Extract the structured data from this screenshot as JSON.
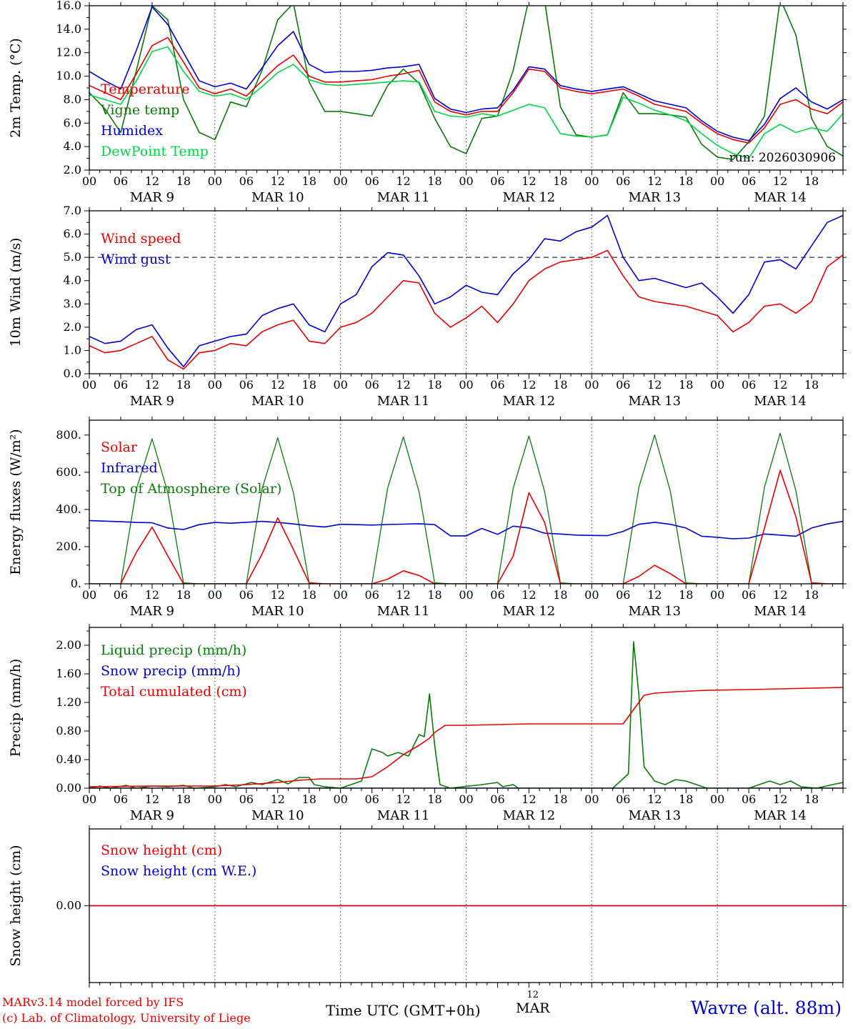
{
  "meta": {
    "credit_line1": "MARv3.14 model forced by IFS",
    "credit_line2": "(c) Lab. of Climatology, University of Liege",
    "xaxis_title": "Time UTC (GMT+0h)",
    "date_day": "12",
    "date_month": "MAR",
    "station_label": "Wavre (alt. 88m)",
    "colors": {
      "red": "#e60000",
      "blue": "#0000cd",
      "green": "#0b7a0b",
      "lightgreen": "#00d544",
      "black": "#000000"
    }
  },
  "xaxis": {
    "xlim": [
      0,
      144
    ],
    "tick_step_hours": 6,
    "tick_labels": [
      "00",
      "06",
      "12",
      "18"
    ],
    "day_labels": [
      "MAR  9",
      "MAR 10",
      "MAR 11",
      "MAR 12",
      "MAR 13",
      "MAR 14"
    ],
    "day_boundaries": [
      24,
      48,
      72,
      96,
      120
    ]
  },
  "chart_data": [
    {
      "type": "line",
      "name": "temp2m",
      "ylabel": "2m Temp. (°C)",
      "ylim": [
        2,
        16
      ],
      "yticks": [
        16,
        14,
        12,
        10,
        8,
        6,
        4,
        2
      ],
      "ytick_labels": [
        "16.0",
        "14.0",
        "12.0",
        "10.0",
        "8.0",
        "6.0",
        "4.0",
        "2.0"
      ],
      "yticks_minor": [
        3,
        5,
        7,
        9,
        11,
        13,
        15
      ],
      "annotation": {
        "text": "run: 2026030906",
        "color": "black"
      },
      "legend": [
        {
          "label": "Temperature",
          "color": "red"
        },
        {
          "label": "Vigne temp",
          "color": "green"
        },
        {
          "label": "Humidex",
          "color": "blue"
        },
        {
          "label": "DewPoint Temp",
          "color": "lightgreen"
        }
      ],
      "series": [
        {
          "name": "vigne-temp",
          "color": "green",
          "step": 3,
          "values": [
            8.6,
            7.2,
            5.2,
            10.5,
            16.0,
            14.8,
            8.0,
            5.2,
            4.6,
            7.8,
            7.4,
            10.5,
            14.8,
            16.2,
            9.5,
            7.0,
            7.0,
            6.8,
            6.6,
            9.2,
            10.6,
            9.4,
            6.4,
            4.0,
            3.4,
            6.4,
            6.6,
            10.5,
            16.6,
            16.4,
            7.4,
            5.0,
            4.8,
            5.0,
            8.6,
            6.8,
            6.8,
            6.7,
            6.5,
            4.2,
            3.1,
            2.9,
            4.4,
            6.6,
            16.6,
            13.5,
            6.4,
            4.0,
            3.2
          ]
        },
        {
          "name": "dewpoint-temp",
          "color": "lightgreen",
          "step": 3,
          "values": [
            8.4,
            8.0,
            7.6,
            9.6,
            12.1,
            12.5,
            10.4,
            8.7,
            8.3,
            8.5,
            8.0,
            9.1,
            10.3,
            11.0,
            9.7,
            9.3,
            9.2,
            9.3,
            9.4,
            9.5,
            9.6,
            9.5,
            7.0,
            6.6,
            6.5,
            6.8,
            6.6,
            7.1,
            7.6,
            7.3,
            5.1,
            4.9,
            4.8,
            5.0,
            8.2,
            7.7,
            7.1,
            6.7,
            6.2,
            5.1,
            4.1,
            3.4,
            3.0,
            5.1,
            5.9,
            5.2,
            5.6,
            5.3,
            6.8
          ]
        },
        {
          "name": "humidex",
          "color": "blue",
          "step": 3,
          "values": [
            10.4,
            9.6,
            8.9,
            12.2,
            15.9,
            14.4,
            12.0,
            9.6,
            9.1,
            9.4,
            8.9,
            10.7,
            12.6,
            13.8,
            11.0,
            10.3,
            10.4,
            10.4,
            10.5,
            10.7,
            10.8,
            11.0,
            8.1,
            7.2,
            6.9,
            7.2,
            7.3,
            8.8,
            10.8,
            10.6,
            9.2,
            8.9,
            8.7,
            8.9,
            9.1,
            8.5,
            7.9,
            7.6,
            7.3,
            6.2,
            5.3,
            4.8,
            4.5,
            5.9,
            8.1,
            9.0,
            7.8,
            7.2,
            8.0
          ]
        },
        {
          "name": "temperature",
          "color": "red",
          "step": 3,
          "values": [
            9.2,
            8.6,
            8.0,
            10.2,
            12.6,
            13.3,
            11.2,
            9.0,
            8.5,
            8.9,
            8.3,
            9.6,
            10.9,
            11.8,
            10.0,
            9.5,
            9.5,
            9.6,
            9.7,
            10.0,
            10.2,
            10.5,
            7.8,
            7.0,
            6.7,
            7.0,
            7.0,
            8.6,
            10.6,
            10.4,
            9.0,
            8.7,
            8.5,
            8.7,
            8.9,
            8.3,
            7.6,
            7.3,
            7.0,
            6.0,
            5.1,
            4.6,
            4.3,
            5.6,
            7.6,
            8.0,
            7.2,
            6.8,
            7.8
          ]
        }
      ]
    },
    {
      "type": "line",
      "name": "wind10m",
      "ylabel": "10m Wind (m/s)",
      "ylim": [
        0,
        7
      ],
      "yticks": [
        7,
        6,
        5,
        4,
        3,
        2,
        1,
        0
      ],
      "ytick_labels": [
        "7.0",
        "6.0",
        "5.0",
        "4.0",
        "3.0",
        "2.0",
        "1.0",
        "0.0"
      ],
      "yticks_minor": [
        0.5,
        1.5,
        2.5,
        3.5,
        4.5,
        5.5,
        6.5
      ],
      "hline": 5.0,
      "legend": [
        {
          "label": "Wind speed",
          "color": "red"
        },
        {
          "label": "Wind gust",
          "color": "blue"
        }
      ],
      "series": [
        {
          "name": "wind-gust",
          "color": "blue",
          "step": 3,
          "values": [
            1.6,
            1.3,
            1.4,
            1.9,
            2.1,
            1.1,
            0.3,
            1.2,
            1.4,
            1.6,
            1.7,
            2.5,
            2.8,
            3.0,
            2.1,
            1.8,
            3.0,
            3.4,
            4.6,
            5.2,
            5.1,
            4.2,
            3.0,
            3.3,
            3.8,
            3.5,
            3.4,
            4.3,
            4.9,
            5.8,
            5.7,
            6.1,
            6.3,
            6.8,
            5.0,
            4.0,
            4.1,
            3.9,
            3.7,
            3.9,
            3.3,
            2.6,
            3.4,
            4.8,
            4.9,
            4.5,
            5.5,
            6.5,
            6.8
          ]
        },
        {
          "name": "wind-speed",
          "color": "red",
          "step": 3,
          "values": [
            1.2,
            0.9,
            1.0,
            1.3,
            1.6,
            0.6,
            0.2,
            0.9,
            1.0,
            1.3,
            1.2,
            1.8,
            2.1,
            2.3,
            1.4,
            1.3,
            2.0,
            2.2,
            2.6,
            3.3,
            4.0,
            3.9,
            2.6,
            2.0,
            2.4,
            2.9,
            2.2,
            3.0,
            4.0,
            4.5,
            4.8,
            4.9,
            5.0,
            5.3,
            4.2,
            3.3,
            3.1,
            3.0,
            2.9,
            2.7,
            2.5,
            1.8,
            2.2,
            2.9,
            3.0,
            2.6,
            3.1,
            4.6,
            5.1
          ]
        }
      ]
    },
    {
      "type": "line",
      "name": "energy-fluxes",
      "ylabel": "Energy fluxes (W/m²)",
      "ylim": [
        0,
        880
      ],
      "yticks": [
        800,
        600,
        400,
        200,
        0
      ],
      "ytick_labels": [
        "800.",
        "600.",
        "400.",
        "200.",
        "0."
      ],
      "yticks_minor": [
        100,
        300,
        500,
        700
      ],
      "legend": [
        {
          "label": "Solar",
          "color": "red"
        },
        {
          "label": "Infrared",
          "color": "blue"
        },
        {
          "label": "Top of Atmosphere (Solar)",
          "color": "green"
        }
      ],
      "series": [
        {
          "name": "top-of-atmosphere-solar",
          "color": "green",
          "step": 3,
          "width": 1.3,
          "values": [
            0,
            0,
            0,
            510,
            780,
            490,
            5,
            0,
            0,
            0,
            0,
            510,
            785,
            490,
            5,
            0,
            0,
            0,
            0,
            515,
            790,
            495,
            5,
            0,
            0,
            0,
            0,
            515,
            795,
            495,
            5,
            0,
            0,
            0,
            0,
            520,
            800,
            500,
            5,
            0,
            0,
            0,
            0,
            520,
            810,
            500,
            5,
            0,
            0
          ]
        },
        {
          "name": "infrared",
          "color": "blue",
          "step": 3,
          "values": [
            340,
            337,
            334,
            330,
            328,
            300,
            292,
            318,
            330,
            326,
            331,
            336,
            330,
            322,
            312,
            306,
            320,
            318,
            316,
            319,
            321,
            323,
            318,
            258,
            258,
            298,
            266,
            310,
            300,
            272,
            268,
            262,
            260,
            259,
            282,
            320,
            331,
            320,
            300,
            256,
            250,
            242,
            246,
            268,
            262,
            256,
            300,
            322,
            336
          ]
        },
        {
          "name": "solar",
          "color": "red",
          "step": 3,
          "values": [
            0,
            0,
            0,
            170,
            305,
            150,
            0,
            0,
            0,
            0,
            0,
            160,
            355,
            185,
            5,
            0,
            0,
            0,
            0,
            25,
            70,
            45,
            0,
            0,
            0,
            0,
            0,
            150,
            490,
            330,
            0,
            0,
            0,
            0,
            0,
            40,
            100,
            55,
            0,
            0,
            0,
            0,
            0,
            300,
            610,
            360,
            5,
            0,
            0
          ]
        }
      ]
    },
    {
      "type": "line",
      "name": "precip",
      "ylabel": "Precip (mm/h)",
      "ylim": [
        0,
        2.25
      ],
      "yticks": [
        2.0,
        1.6,
        1.2,
        0.8,
        0.4,
        0.0
      ],
      "ytick_labels": [
        "2.00",
        "1.60",
        "1.20",
        "0.80",
        "0.40",
        "0.00"
      ],
      "yticks_minor": [
        0.2,
        0.6,
        1.0,
        1.4,
        1.8,
        2.2
      ],
      "legend": [
        {
          "label": "Liquid precip (mm/h)",
          "color": "green"
        },
        {
          "label": "Snow precip (mm/h)",
          "color": "blue"
        },
        {
          "label": "Total cumulated (cm)",
          "color": "red"
        }
      ],
      "series": [
        {
          "name": "snow-precip",
          "color": "blue",
          "x": [
            0,
            144
          ],
          "y": [
            0,
            0
          ]
        },
        {
          "name": "liquid-precip",
          "color": "green",
          "x": [
            0,
            2,
            4,
            7,
            9,
            12,
            15,
            18,
            20,
            24,
            26,
            28,
            31,
            33,
            36,
            38,
            40,
            42,
            43,
            45,
            48,
            52,
            54,
            56,
            57,
            59,
            61,
            63,
            64,
            65,
            66,
            67,
            69,
            75,
            78,
            79,
            81,
            82,
            96,
            100,
            103,
            104,
            105,
            106,
            108,
            110,
            112,
            114,
            116,
            118,
            126,
            128,
            130,
            132,
            134,
            136,
            139,
            142,
            144
          ],
          "y": [
            0,
            0.03,
            0,
            0.04,
            0,
            0.03,
            0.02,
            0.04,
            0,
            0.02,
            0.05,
            0.02,
            0.08,
            0.05,
            0.12,
            0.06,
            0.15,
            0.15,
            0.05,
            0.02,
            0,
            0.1,
            0.55,
            0.5,
            0.45,
            0.5,
            0.45,
            0.75,
            0.72,
            1.32,
            0.6,
            0.05,
            0,
            0.05,
            0.08,
            0.02,
            0.05,
            0,
            0,
            0,
            0.2,
            2.05,
            1.3,
            0.3,
            0.1,
            0.05,
            0.12,
            0.1,
            0.05,
            0,
            0,
            0.05,
            0.1,
            0.05,
            0.1,
            0.02,
            0,
            0.05,
            0.08
          ]
        },
        {
          "name": "total-cumulated",
          "color": "red",
          "x": [
            0,
            12,
            24,
            30,
            36,
            40,
            44,
            51,
            54,
            57,
            60,
            63,
            65,
            66,
            68,
            72,
            78,
            84,
            96,
            102,
            104,
            106,
            108,
            112,
            118,
            126,
            132,
            138,
            144
          ],
          "y": [
            0.02,
            0.03,
            0.03,
            0.05,
            0.08,
            0.11,
            0.13,
            0.13,
            0.16,
            0.3,
            0.47,
            0.6,
            0.7,
            0.78,
            0.88,
            0.88,
            0.89,
            0.9,
            0.9,
            0.9,
            1.1,
            1.3,
            1.33,
            1.35,
            1.37,
            1.38,
            1.39,
            1.4,
            1.41
          ]
        }
      ]
    },
    {
      "type": "line",
      "name": "snow-height",
      "ylabel": "Snow height (cm)",
      "ylim": [
        -1,
        1
      ],
      "yticks": [
        0
      ],
      "ytick_labels": [
        "0.00"
      ],
      "yticks_minor": [],
      "legend": [
        {
          "label": "Snow height (cm)",
          "color": "red"
        },
        {
          "label": "Snow height (cm W.E.)",
          "color": "blue"
        }
      ],
      "series": [
        {
          "name": "snow-height-we",
          "color": "blue",
          "x": [
            0,
            144
          ],
          "y": [
            0,
            0
          ]
        },
        {
          "name": "snow-height",
          "color": "red",
          "x": [
            0,
            144
          ],
          "y": [
            0,
            0
          ]
        }
      ]
    }
  ]
}
